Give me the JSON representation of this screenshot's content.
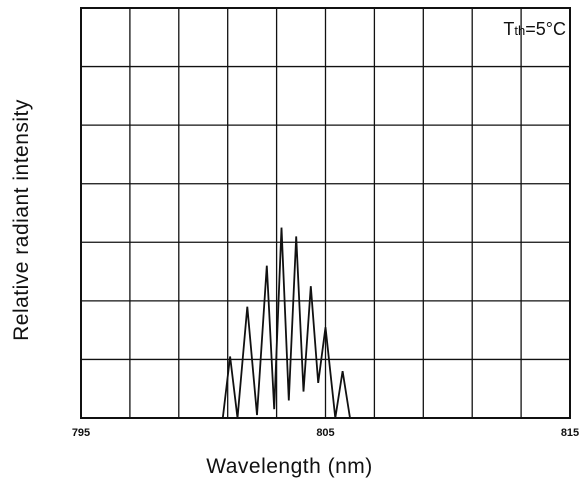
{
  "chart_data": {
    "type": "line",
    "xlabel": "Wavelength (nm)",
    "ylabel": "Relative radiant intensity",
    "xlim": [
      795,
      815
    ],
    "ylim": [
      0,
      7
    ],
    "x_ticks": [
      "795",
      "805",
      "815"
    ],
    "grid": true,
    "grid_x_divisions": 10,
    "grid_y_divisions": 7,
    "annotation": {
      "main": "T",
      "sub": "th",
      "rest": "=5°C",
      "position": "top-right"
    },
    "series": [
      {
        "x": [
          795.0,
          800.8,
          801.1,
          801.4,
          801.8,
          802.2,
          802.6,
          802.9,
          803.2,
          803.5,
          803.8,
          804.1,
          804.4,
          804.7,
          805.0,
          805.4,
          805.7,
          806.0,
          806.2,
          815.0
        ],
        "y": [
          0.0,
          0.0,
          1.05,
          0.0,
          1.9,
          0.05,
          2.6,
          0.15,
          3.25,
          0.3,
          3.1,
          0.45,
          2.25,
          0.6,
          1.55,
          0.0,
          0.8,
          0.0,
          0.0,
          0.0
        ]
      }
    ]
  }
}
